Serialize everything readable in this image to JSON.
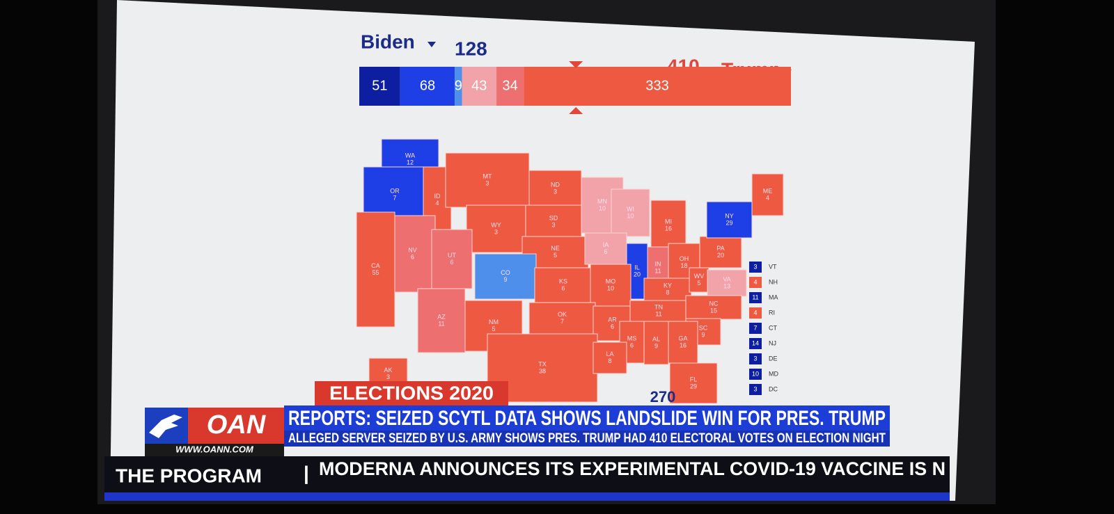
{
  "header": {
    "biden": {
      "name": "Biden",
      "total": 128
    },
    "trump": {
      "name": "Trump",
      "total": 410
    }
  },
  "bar": {
    "segments": [
      {
        "value": 51,
        "color": "#0d1fa0"
      },
      {
        "value": 68,
        "color": "#1f3fe6"
      },
      {
        "value": 9,
        "color": "#4d8fea"
      },
      {
        "value": 43,
        "color": "#f2a3aa"
      },
      {
        "value": 34,
        "color": "#ee6f6f"
      },
      {
        "value": 333,
        "color": "#ee5942"
      }
    ]
  },
  "threshold": 270,
  "states": [
    {
      "label": "WA",
      "ev": 12,
      "color": "#1f3fe6"
    },
    {
      "label": "OR",
      "ev": 7,
      "color": "#1f3fe6"
    },
    {
      "label": "ID",
      "ev": 4,
      "color": "#ee5942"
    },
    {
      "label": "MT",
      "ev": 3,
      "color": "#ee5942"
    },
    {
      "label": "ND",
      "ev": 3,
      "color": "#ee5942"
    },
    {
      "label": "SD",
      "ev": 3,
      "color": "#ee5942"
    },
    {
      "label": "WY",
      "ev": 3,
      "color": "#ee5942"
    },
    {
      "label": "NE",
      "ev": 5,
      "color": "#ee5942"
    },
    {
      "label": "MN",
      "ev": 10,
      "color": "#f2a3aa"
    },
    {
      "label": "WI",
      "ev": 10,
      "color": "#f2a3aa"
    },
    {
      "label": "MI",
      "ev": 16,
      "color": "#ee5942"
    },
    {
      "label": "IA",
      "ev": 6,
      "color": "#f2a3aa"
    },
    {
      "label": "IL",
      "ev": 20,
      "color": "#1f3fe6"
    },
    {
      "label": "IN",
      "ev": 11,
      "color": "#ee6f6f"
    },
    {
      "label": "OH",
      "ev": 18,
      "color": "#ee5942"
    },
    {
      "label": "PA",
      "ev": 20,
      "color": "#ee5942"
    },
    {
      "label": "NY",
      "ev": 29,
      "color": "#1f3fe6"
    },
    {
      "label": "ME",
      "ev": 4,
      "color": "#ee5942"
    },
    {
      "label": "NV",
      "ev": 6,
      "color": "#ee6f6f"
    },
    {
      "label": "UT",
      "ev": 6,
      "color": "#ee6f6f"
    },
    {
      "label": "CO",
      "ev": 9,
      "color": "#4d8fea"
    },
    {
      "label": "KS",
      "ev": 6,
      "color": "#ee5942"
    },
    {
      "label": "MO",
      "ev": 10,
      "color": "#ee5942"
    },
    {
      "label": "KY",
      "ev": 8,
      "color": "#ee5942"
    },
    {
      "label": "WV",
      "ev": 5,
      "color": "#ee5942"
    },
    {
      "label": "VA",
      "ev": 13,
      "color": "#f2a3aa"
    },
    {
      "label": "CA",
      "ev": 55,
      "color": "#ee5942"
    },
    {
      "label": "AZ",
      "ev": 11,
      "color": "#ee6f6f"
    },
    {
      "label": "NM",
      "ev": 5,
      "color": "#ee5942"
    },
    {
      "label": "OK",
      "ev": 7,
      "color": "#ee5942"
    },
    {
      "label": "AR",
      "ev": 6,
      "color": "#ee5942"
    },
    {
      "label": "TN",
      "ev": 11,
      "color": "#ee5942"
    },
    {
      "label": "NC",
      "ev": 15,
      "color": "#ee5942"
    },
    {
      "label": "SC",
      "ev": 9,
      "color": "#ee5942"
    },
    {
      "label": "MS",
      "ev": 6,
      "color": "#ee5942"
    },
    {
      "label": "AL",
      "ev": 9,
      "color": "#ee5942"
    },
    {
      "label": "GA",
      "ev": 16,
      "color": "#ee5942"
    },
    {
      "label": "TX",
      "ev": 38,
      "color": "#ee5942"
    },
    {
      "label": "LA",
      "ev": 8,
      "color": "#ee5942"
    },
    {
      "label": "FL",
      "ev": 29,
      "color": "#ee5942"
    },
    {
      "label": "AK",
      "ev": 3,
      "color": "#ee5942"
    }
  ],
  "small_states": [
    {
      "label": "VT",
      "ev": 3,
      "color": "#0d1fa0"
    },
    {
      "label": "NH",
      "ev": 4,
      "color": "#ee5942"
    },
    {
      "label": "MA",
      "ev": 11,
      "color": "#0d1fa0"
    },
    {
      "label": "RI",
      "ev": 4,
      "color": "#ee5942"
    },
    {
      "label": "CT",
      "ev": 7,
      "color": "#0d1fa0"
    },
    {
      "label": "NJ",
      "ev": 14,
      "color": "#0d1fa0"
    },
    {
      "label": "DE",
      "ev": 3,
      "color": "#0d1fa0"
    },
    {
      "label": "MD",
      "ev": 10,
      "color": "#0d1fa0"
    },
    {
      "label": "DC",
      "ev": 3,
      "color": "#0d1fa0"
    }
  ],
  "chyron": {
    "section": "ELECTIONS 2020",
    "logo": "OAN",
    "url": "WWW.OANN.COM",
    "headline": "REPORTS: SEIZED SCYTL DATA SHOWS LANDSLIDE WIN FOR PRES. TRUMP",
    "subhead": "ALLEGED SERVER SEIZED BY U.S. ARMY SHOWS PRES. TRUMP HAD 410 ELECTORAL VOTES ON ELECTION NIGHT"
  },
  "ticker": {
    "label": "THE PROGRAM",
    "separator": "|",
    "text": "MODERNA ANNOUNCES ITS EXPERIMENTAL COVID-19 VACCINE IS N"
  }
}
